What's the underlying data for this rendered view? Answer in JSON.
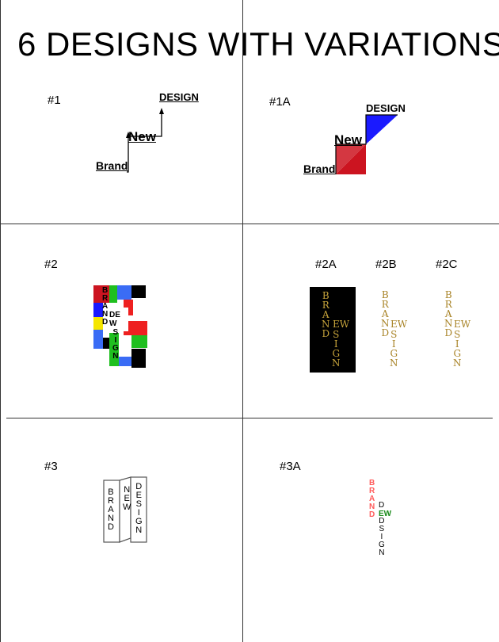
{
  "title": "6 DESIGNS WITH VARIATIONS",
  "labels": {
    "d1": "#1",
    "d1a": "#1A",
    "d2": "#2",
    "d2a": "#2A",
    "d2b": "#2B",
    "d2c": "#2C",
    "d3": "#3",
    "d3a": "#3A"
  },
  "words": {
    "brand": "Brand",
    "new": "New",
    "design": "DESIGN"
  },
  "stack_letters": {
    "brand": [
      "B",
      "R",
      "A",
      "N",
      "D"
    ],
    "dew": "DEW",
    "ew": "EW",
    "sign": [
      "S",
      "I",
      "G",
      "N"
    ],
    "design": [
      "D",
      "E",
      "S",
      "I",
      "G",
      "N"
    ],
    "new": [
      "N",
      "E",
      "W"
    ]
  },
  "colors": {
    "red": "#cc1420",
    "blue": "#1a1aff",
    "green": "#1fbf1f",
    "yellow": "#f5e600",
    "black": "#000000",
    "gold": "#c8a53c",
    "pink": "#ff6b6b",
    "darkgreen": "#1a8a1a"
  }
}
